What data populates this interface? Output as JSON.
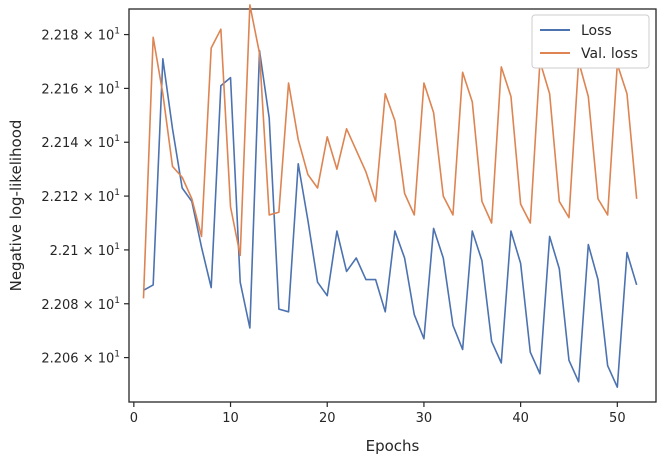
{
  "colors": {
    "loss": "#4c72b0",
    "val_loss": "#dd8452",
    "axis": "#262626",
    "background": "#ffffff"
  },
  "chart_data": {
    "type": "line",
    "xlabel": "Epochs",
    "ylabel": "Negative log-likelihood",
    "xlim": [
      -0.5,
      54
    ],
    "ylim": [
      22.0435,
      22.1895
    ],
    "xticks": [
      0,
      10,
      20,
      30,
      40,
      50
    ],
    "xtick_labels": [
      "0",
      "10",
      "20",
      "30",
      "40",
      "50"
    ],
    "yticks": [
      22.06,
      22.08,
      22.1,
      22.12,
      22.14,
      22.16,
      22.18
    ],
    "ytick_labels": [
      {
        "mantissa": "2.206",
        "exp": "1"
      },
      {
        "mantissa": "2.208",
        "exp": "1"
      },
      {
        "mantissa": "2.21",
        "exp": "1"
      },
      {
        "mantissa": "2.212",
        "exp": "1"
      },
      {
        "mantissa": "2.214",
        "exp": "1"
      },
      {
        "mantissa": "2.216",
        "exp": "1"
      },
      {
        "mantissa": "2.218",
        "exp": "1"
      }
    ],
    "grid": false,
    "legend_position": "top-right",
    "x": [
      1,
      2,
      3,
      4,
      5,
      6,
      7,
      8,
      9,
      10,
      11,
      12,
      13,
      14,
      15,
      16,
      17,
      18,
      19,
      20,
      21,
      22,
      23,
      24,
      25,
      26,
      27,
      28,
      29,
      30,
      31,
      32,
      33,
      34,
      35,
      36,
      37,
      38,
      39,
      40,
      41,
      42,
      43,
      44,
      45,
      46,
      47,
      48,
      49,
      50,
      51,
      52
    ],
    "series": [
      {
        "name": "Loss",
        "values": [
          22.085,
          22.087,
          22.171,
          22.145,
          22.123,
          22.118,
          22.101,
          22.086,
          22.161,
          22.164,
          22.088,
          22.071,
          22.174,
          22.149,
          22.078,
          22.077,
          22.132,
          22.111,
          22.088,
          22.083,
          22.107,
          22.092,
          22.097,
          22.089,
          22.089,
          22.077,
          22.107,
          22.097,
          22.076,
          22.067,
          22.108,
          22.097,
          22.072,
          22.063,
          22.107,
          22.096,
          22.066,
          22.058,
          22.107,
          22.095,
          22.062,
          22.054,
          22.105,
          22.093,
          22.059,
          22.051,
          22.102,
          22.089,
          22.057,
          22.049,
          22.099,
          22.087
        ]
      },
      {
        "name": "Val. loss",
        "values": [
          22.082,
          22.179,
          22.158,
          22.131,
          22.127,
          22.119,
          22.105,
          22.175,
          22.182,
          22.116,
          22.098,
          22.191,
          22.173,
          22.113,
          22.114,
          22.162,
          22.141,
          22.128,
          22.123,
          22.142,
          22.13,
          22.145,
          22.137,
          22.129,
          22.118,
          22.158,
          22.148,
          22.121,
          22.113,
          22.162,
          22.151,
          22.12,
          22.113,
          22.166,
          22.155,
          22.118,
          22.11,
          22.168,
          22.157,
          22.117,
          22.11,
          22.17,
          22.158,
          22.118,
          22.112,
          22.17,
          22.157,
          22.119,
          22.113,
          22.169,
          22.158,
          22.119
        ]
      }
    ]
  }
}
